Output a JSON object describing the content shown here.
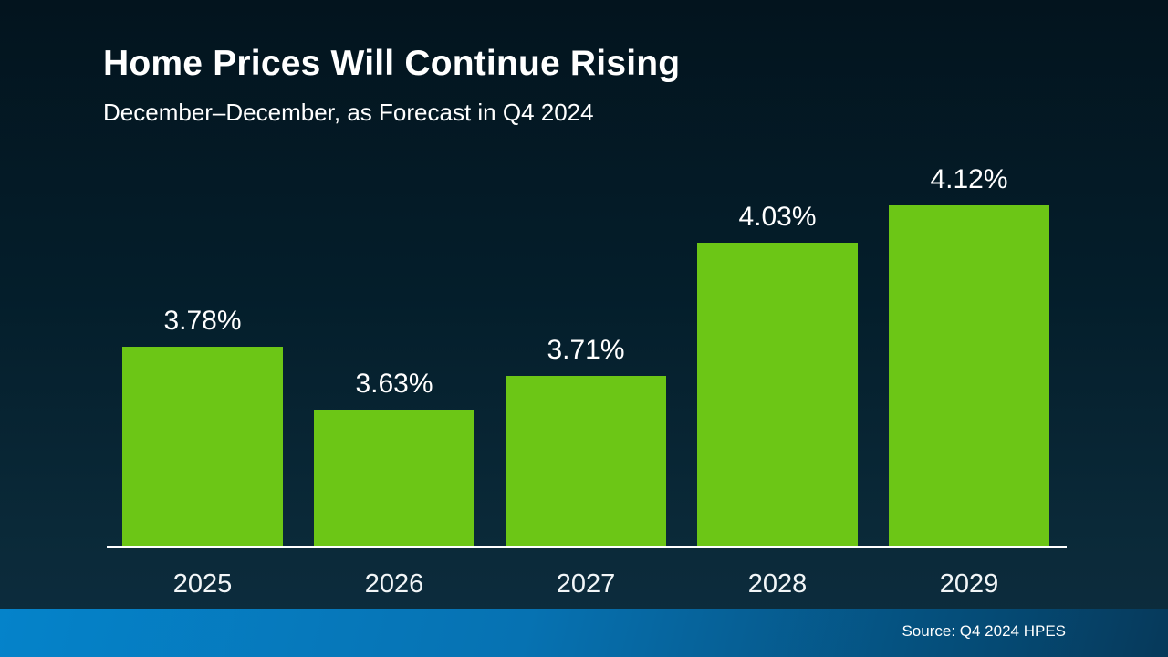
{
  "header": {
    "title": "Home Prices Will Continue Rising",
    "subtitle": "December–December, as Forecast in Q4 2024"
  },
  "chart_data": {
    "type": "bar",
    "categories": [
      "2025",
      "2026",
      "2027",
      "2028",
      "2029"
    ],
    "values": [
      3.78,
      3.63,
      3.71,
      4.03,
      4.12
    ],
    "labels": [
      "3.78%",
      "3.63%",
      "3.71%",
      "4.03%",
      "4.12%"
    ],
    "title": "Home Prices Will Continue Rising",
    "subtitle": "December–December, as Forecast in Q4 2024",
    "xlabel": "",
    "ylabel": "",
    "ylim": [
      3.3,
      4.2
    ],
    "grid": false,
    "legend": "none",
    "bar_color": "#6cc616",
    "data_label_position": "above-bar"
  },
  "footer": {
    "source": "Source: Q4 2024 HPES"
  },
  "colors": {
    "background_top": "#03141e",
    "background_bottom": "#0e2d3f",
    "bar_green": "#6cc616",
    "axis_line": "#ffffff",
    "text": "#ffffff",
    "footer_gradient_left": "#0583ca",
    "footer_gradient_right": "#06395a"
  }
}
